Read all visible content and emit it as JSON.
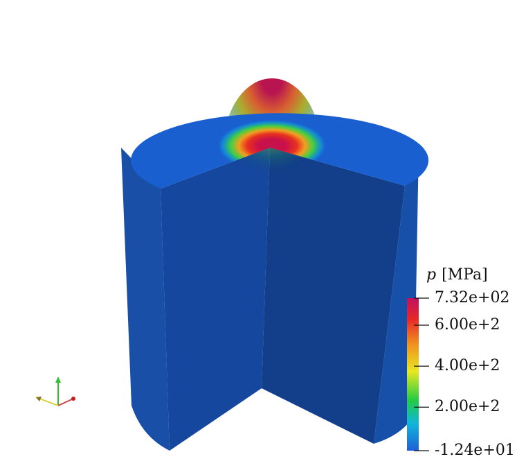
{
  "colorbar": {
    "title_symbol": "p",
    "title_unit": "[MPa]",
    "lim": [
      -12.4,
      732
    ],
    "ticks": [
      {
        "value": 732,
        "label": "7.32e+02"
      },
      {
        "value": 600,
        "label": "6.00e+2"
      },
      {
        "value": 400,
        "label": "4.00e+2"
      },
      {
        "value": 200,
        "label": "2.00e+2"
      },
      {
        "value": -12.4,
        "label": "-1.24e+01"
      }
    ]
  }
}
